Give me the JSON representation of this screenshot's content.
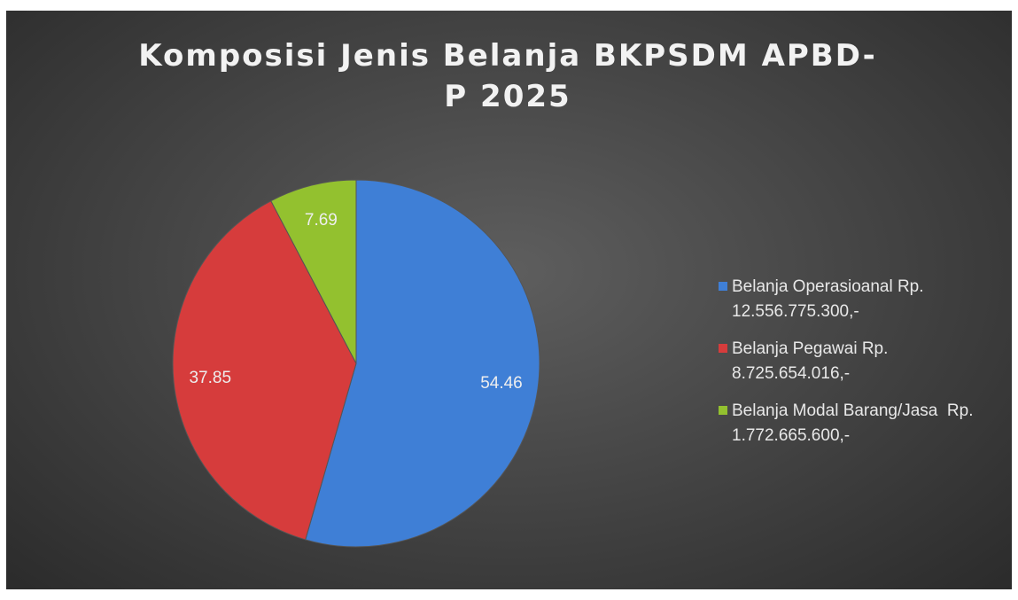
{
  "chart_data": {
    "type": "pie",
    "title": "Komposisi Jenis Belanja BKPSDM APBD-P 2025",
    "categories": [
      "Belanja Operasioanal Rp. 12.556.775.300,-",
      "Belanja Pegawai Rp. 8.725.654.016,-",
      "Belanja Modal Barang/Jasa  Rp. 1.772.665.600,-"
    ],
    "values": [
      54.46,
      37.85,
      7.69
    ],
    "colors": [
      "#3f7fd6",
      "#d63c3c",
      "#93c12f"
    ],
    "legend": "right"
  }
}
